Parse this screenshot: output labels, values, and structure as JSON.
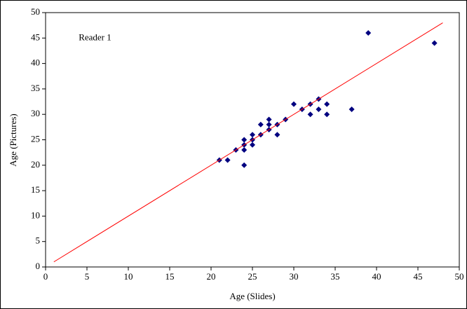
{
  "chart_data": {
    "type": "scatter",
    "annotation": "Reader 1",
    "xlabel": "Age (Slides)",
    "ylabel": "Age (Pictures)",
    "xlim": [
      0,
      50
    ],
    "xticks": [
      0,
      5,
      10,
      15,
      20,
      25,
      30,
      35,
      40,
      45,
      50
    ],
    "ylim": [
      0,
      50
    ],
    "yticks": [
      0,
      5,
      10,
      15,
      20,
      25,
      30,
      35,
      40,
      45,
      50
    ],
    "grid": false,
    "series": [
      {
        "color": "#000080",
        "marker": "diamond",
        "x": [
          21,
          22,
          23,
          24,
          24,
          24,
          24,
          25,
          25,
          25,
          26,
          26,
          27,
          27,
          27,
          28,
          28,
          29,
          30,
          31,
          32,
          32,
          33,
          33,
          34,
          34,
          37,
          39,
          47
        ],
        "values": [
          21,
          21,
          23,
          25,
          24,
          23,
          20,
          26,
          25,
          24,
          28,
          26,
          29,
          28,
          27,
          28,
          26,
          29,
          32,
          31,
          32,
          30,
          33,
          31,
          32,
          30,
          31,
          46,
          44
        ]
      },
      {
        "color": "#ff0000",
        "style": "line",
        "x": [
          1,
          48
        ],
        "values": [
          1,
          48
        ]
      }
    ]
  }
}
